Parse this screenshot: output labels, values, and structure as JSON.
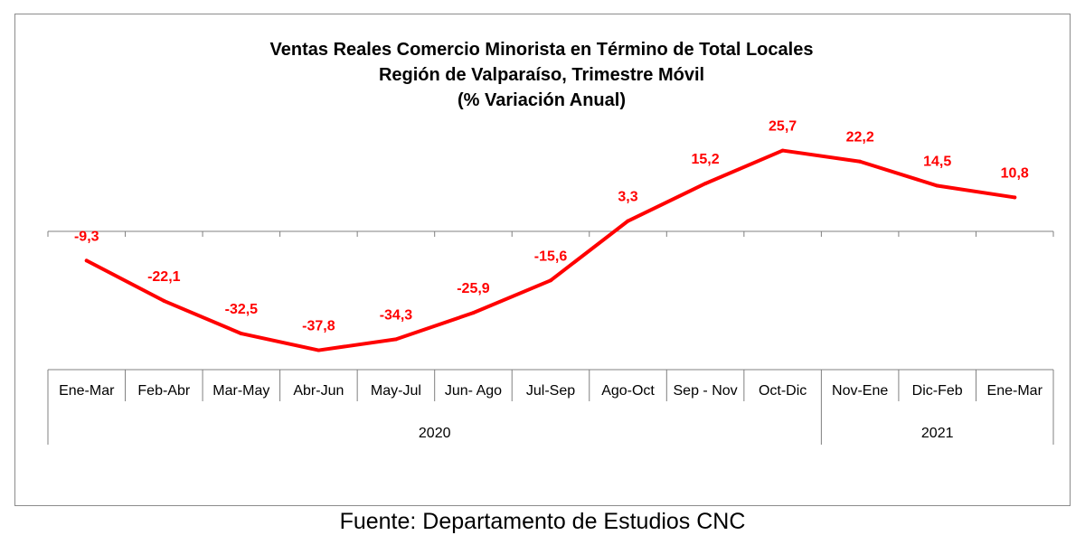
{
  "chart_data": {
    "type": "line",
    "title_lines": [
      "Ventas Reales Comercio Minorista  en Término de Total Locales",
      "Región de Valparaíso, Trimestre Móvil",
      "(% Variación Anual)"
    ],
    "categories": [
      "Ene-Mar",
      "Feb-Abr",
      "Mar-May",
      "Abr-Jun",
      "May-Jul",
      "Jun- Ago",
      "Jul-Sep",
      "Ago-Oct",
      "Sep - Nov",
      "Oct-Dic",
      "Nov-Ene",
      "Dic-Feb",
      "Ene-Mar"
    ],
    "values": [
      -9.3,
      -22.1,
      -32.5,
      -37.8,
      -34.3,
      -25.9,
      -15.6,
      3.3,
      15.2,
      25.7,
      22.2,
      14.5,
      10.8
    ],
    "value_labels": [
      "-9,3",
      "-22,1",
      "-32,5",
      "-37,8",
      "-34,3",
      "-25,9",
      "-15,6",
      "3,3",
      "15,2",
      "25,7",
      "22,2",
      "14,5",
      "10,8"
    ],
    "year_groups": [
      {
        "label": "2020",
        "count": 10
      },
      {
        "label": "2021",
        "count": 3
      }
    ],
    "series_color": "#ff0000",
    "label_color": "#ff0000",
    "axis_color": "#808080",
    "grid": false,
    "legend": "none"
  },
  "source_note": "Fuente: Departamento de Estudios CNC"
}
